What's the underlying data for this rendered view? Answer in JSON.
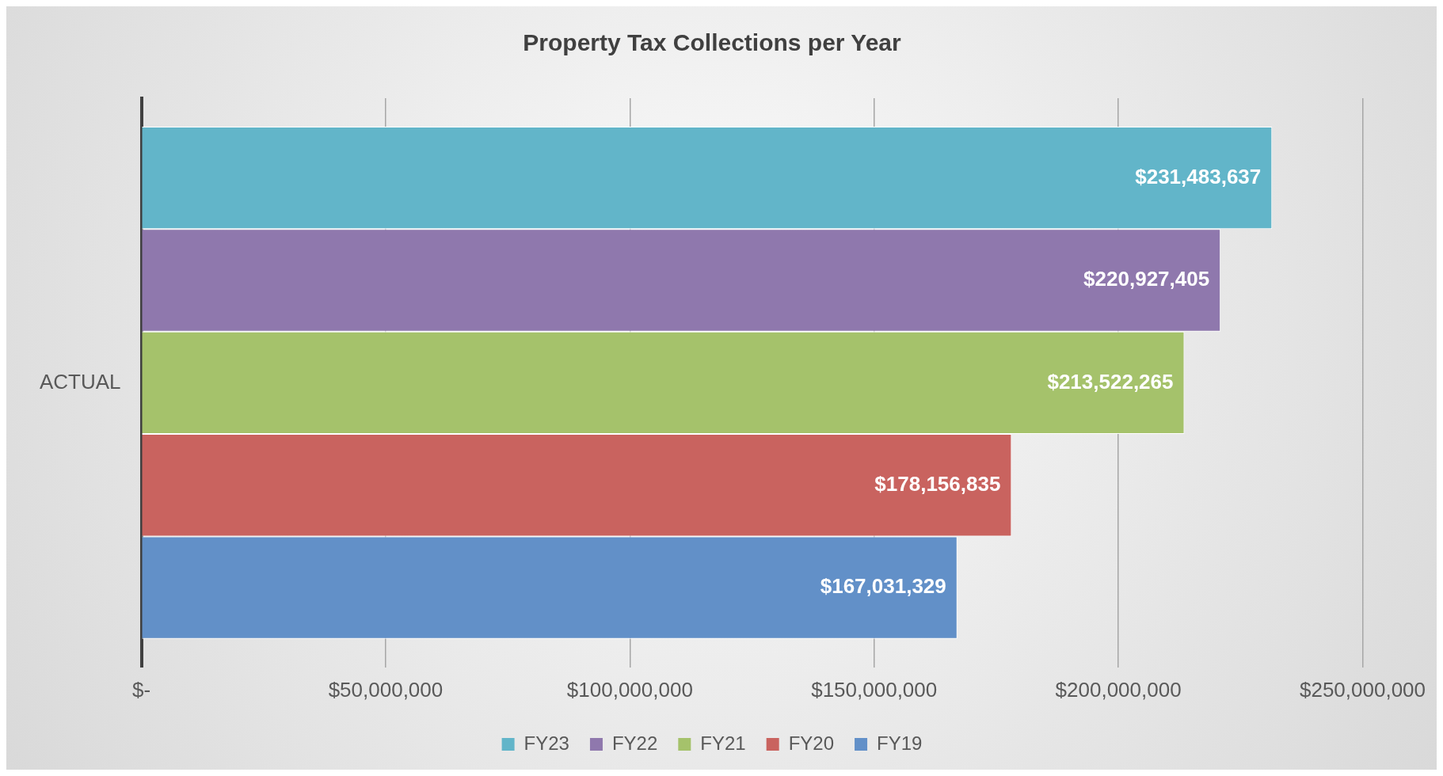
{
  "chart_data": {
    "type": "bar",
    "orientation": "horizontal",
    "title": "Property Tax Collections per Year",
    "categories": [
      "ACTUAL"
    ],
    "series": [
      {
        "name": "FY23",
        "color": "#62b5c9",
        "values": [
          231483637
        ],
        "value_labels": [
          "$231,483,637"
        ]
      },
      {
        "name": "FY22",
        "color": "#8f78ad",
        "values": [
          220927405
        ],
        "value_labels": [
          "$220,927,405"
        ]
      },
      {
        "name": "FY21",
        "color": "#a5c26b",
        "values": [
          213522265
        ],
        "value_labels": [
          "$213,522,265"
        ]
      },
      {
        "name": "FY20",
        "color": "#c9635f",
        "values": [
          178156835
        ],
        "value_labels": [
          "$178,156,835"
        ]
      },
      {
        "name": "FY19",
        "color": "#6290c8",
        "values": [
          167031329
        ],
        "value_labels": [
          "$167,031,329"
        ]
      }
    ],
    "xlim": [
      0,
      250000000
    ],
    "xticks": [
      {
        "value": 0,
        "label": "$-"
      },
      {
        "value": 50000000,
        "label": "$50,000,000"
      },
      {
        "value": 100000000,
        "label": "$100,000,000"
      },
      {
        "value": 150000000,
        "label": "$150,000,000"
      },
      {
        "value": 200000000,
        "label": "$200,000,000"
      },
      {
        "value": 250000000,
        "label": "$250,000,000"
      }
    ],
    "grid": "x",
    "legend": "bottom"
  }
}
